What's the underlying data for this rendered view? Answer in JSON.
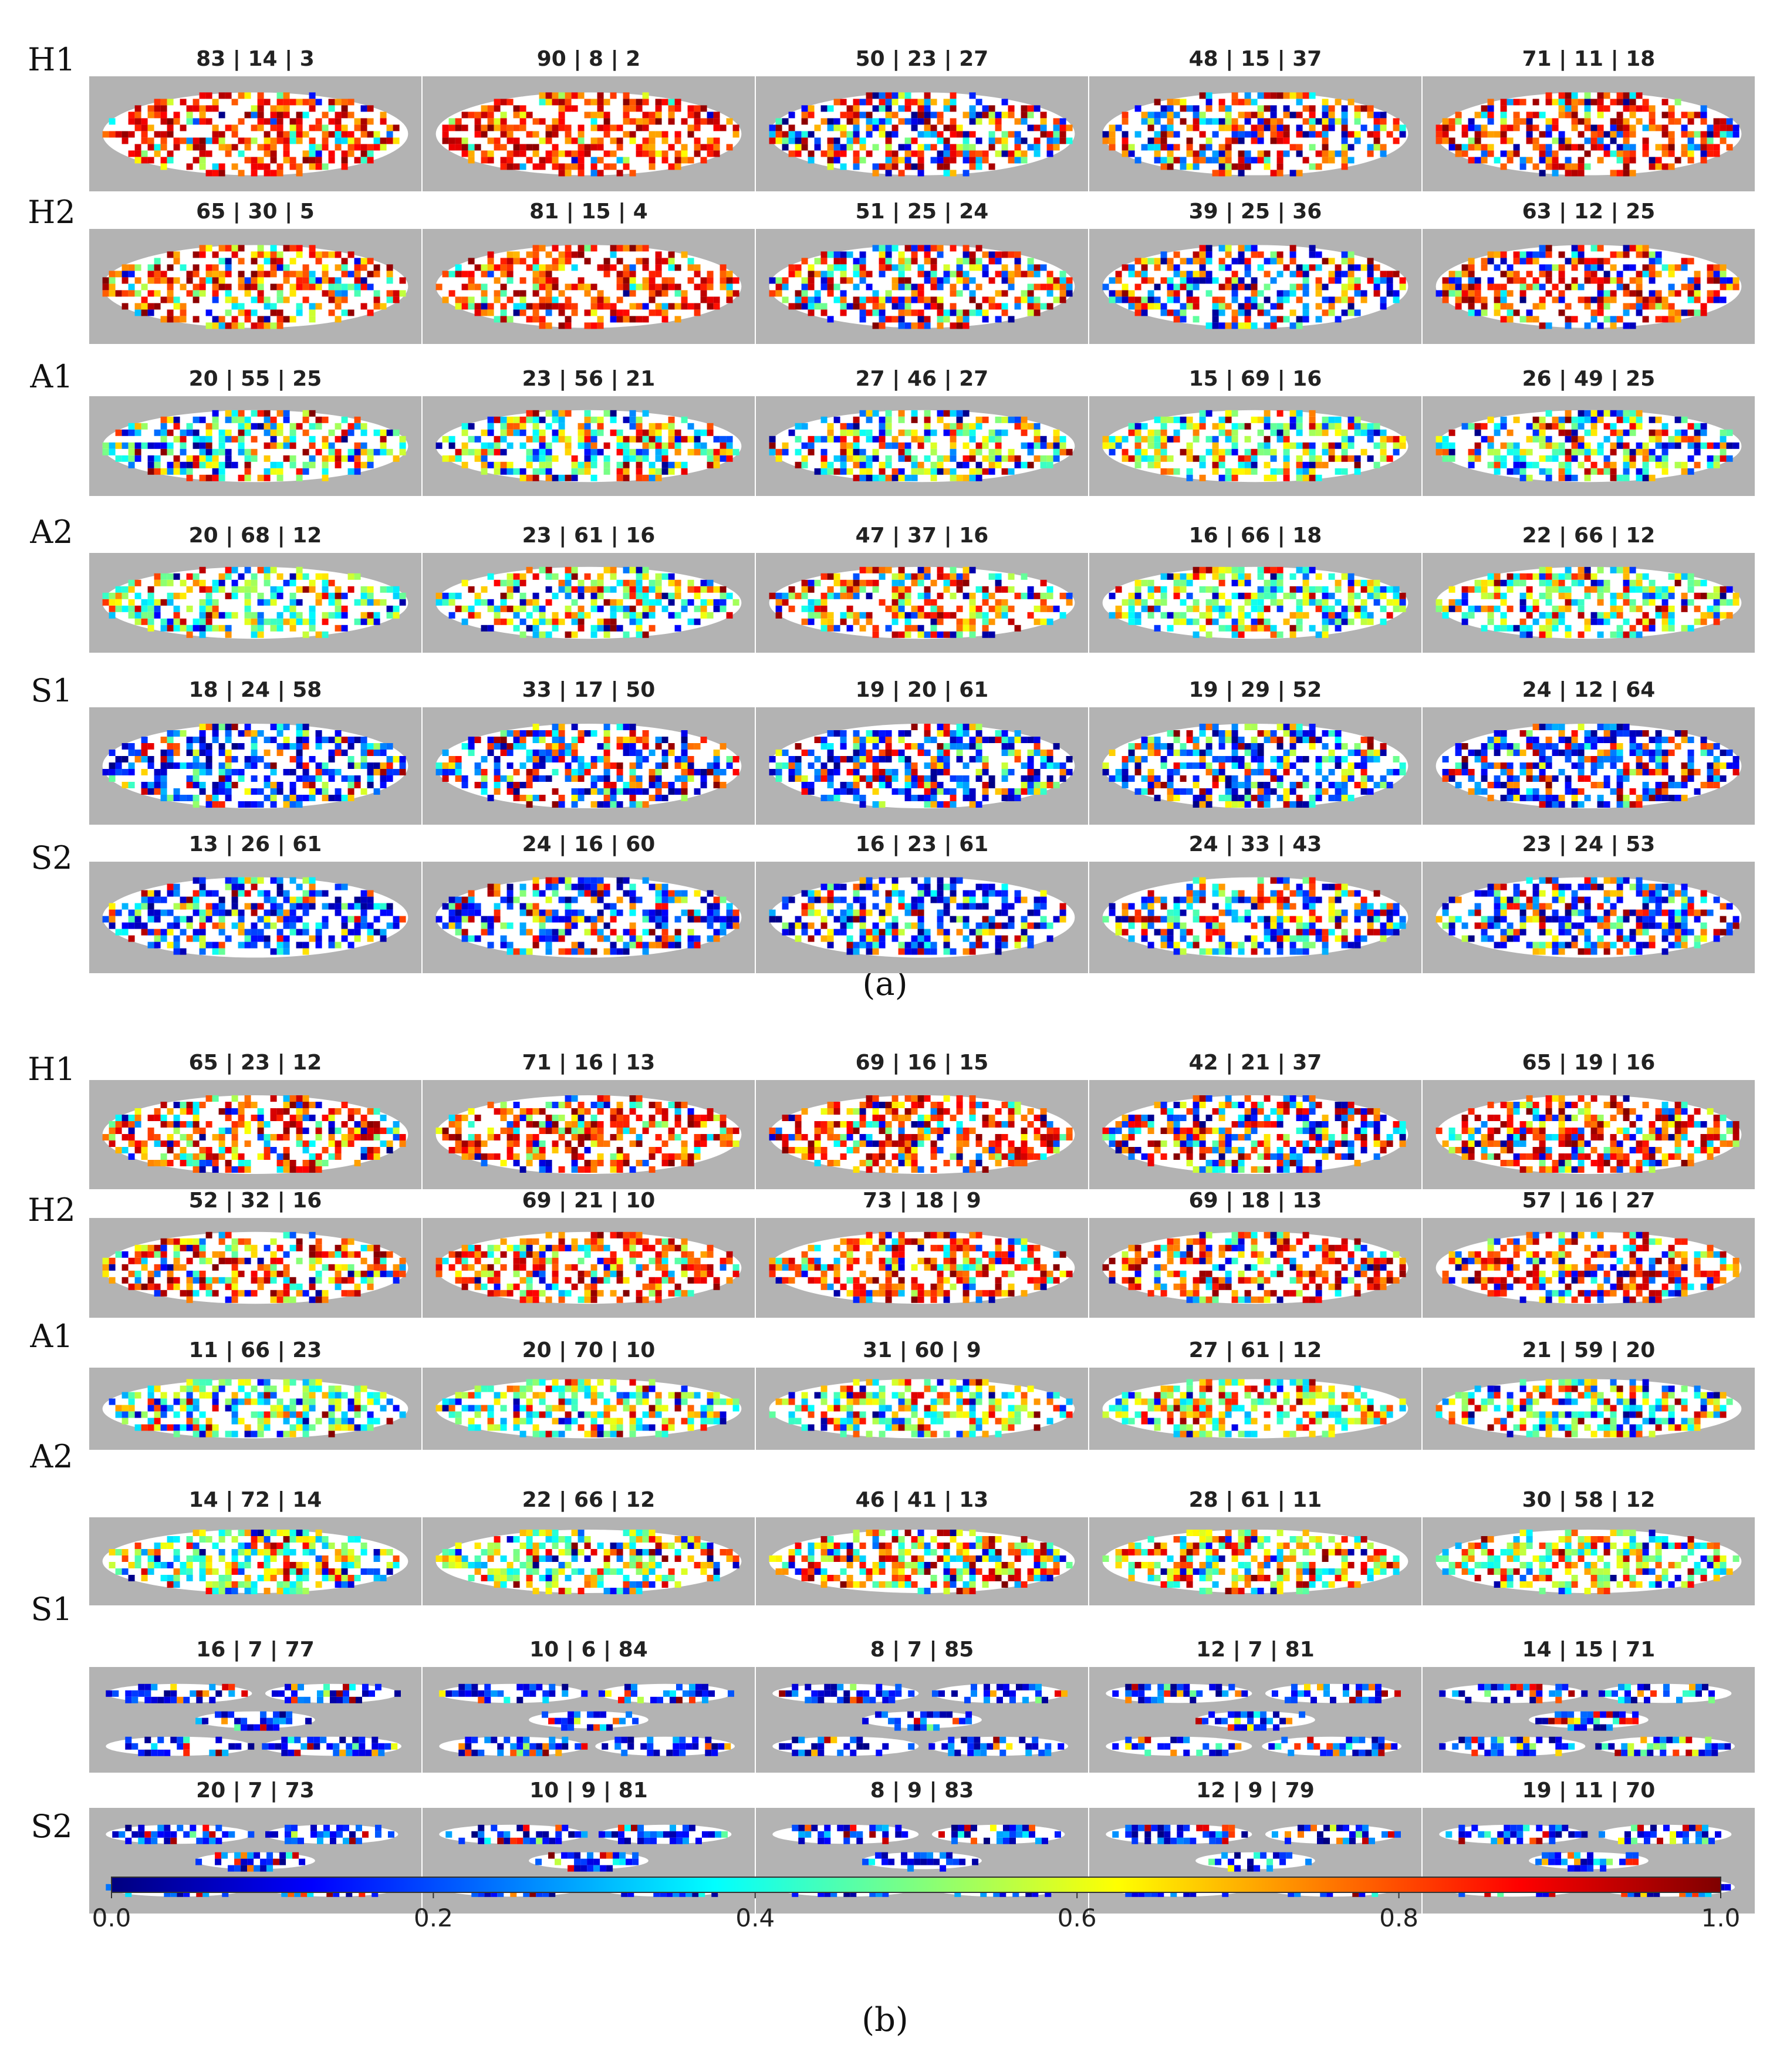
{
  "panels": [
    {
      "label": "(a)",
      "rows": [
        {
          "name": "H1",
          "cells": [
            "83 | 14 | 3",
            "90 | 8 | 2",
            "50 | 23 | 27",
            "48 | 15 | 37",
            "71 | 11 | 18"
          ]
        },
        {
          "name": "H2",
          "cells": [
            "65 | 30 | 5",
            "81 | 15 | 4",
            "51 | 25 | 24",
            "39 | 25 | 36",
            "63 | 12 | 25"
          ]
        },
        {
          "name": "A1",
          "cells": [
            "20 | 55 | 25",
            "23 | 56 | 21",
            "27 | 46 | 27",
            "15 | 69 | 16",
            "26 | 49 | 25"
          ]
        },
        {
          "name": "A2",
          "cells": [
            "20 | 68 | 12",
            "23 | 61 | 16",
            "47 | 37 | 16",
            "16 | 66 | 18",
            "22 | 66 | 12"
          ]
        },
        {
          "name": "S1",
          "cells": [
            "18 | 24 | 58",
            "33 | 17 | 50",
            "19 | 20 | 61",
            "19 | 29 | 52",
            "24 | 12 | 64"
          ]
        },
        {
          "name": "S2",
          "cells": [
            "13 | 26 | 61",
            "24 | 16 | 60",
            "16 | 23 | 61",
            "24 | 33 | 43",
            "23 | 24 | 53"
          ]
        }
      ]
    },
    {
      "label": "(b)",
      "rows": [
        {
          "name": "H1",
          "cells": [
            "65 | 23 | 12",
            "71 | 16 | 13",
            "69 | 16 | 15",
            "42 | 21 | 37",
            "65 | 19 | 16"
          ]
        },
        {
          "name": "H2",
          "cells": [
            "52 | 32 | 16",
            "69 | 21 | 10",
            "73 | 18 | 9",
            "69 | 18 | 13",
            "57 | 16 | 27"
          ]
        },
        {
          "name": "A1",
          "cells": [
            "11 | 66 | 23",
            "20 | 70 | 10",
            "31 | 60 | 9",
            "27 | 61 | 12",
            "21 | 59 | 20"
          ]
        },
        {
          "name": "A2",
          "cells": [
            "14 | 72 | 14",
            "22 | 66 | 12",
            "46 | 41 | 13",
            "28 | 61 | 11",
            "30 | 58 | 12"
          ]
        },
        {
          "name": "S1",
          "cells": [
            "16 | 7 | 77",
            "10 | 6 | 84",
            "8 | 7 | 85",
            "12 | 7 | 81",
            "14 | 15 | 71"
          ]
        },
        {
          "name": "S2",
          "cells": [
            "20 | 7 | 73",
            "10 | 9 | 81",
            "8 | 9 | 83",
            "12 | 9 | 79",
            "19 | 11 | 70"
          ]
        }
      ]
    }
  ],
  "colorbar": {
    "min": 0.0,
    "max": 1.0,
    "ticks": [
      "0.0",
      "0.2",
      "0.4",
      "0.6",
      "0.8",
      "1.0"
    ],
    "colormap": "jet",
    "stops": [
      "#00007f",
      "#0000ff",
      "#007fff",
      "#00ffff",
      "#7fff7f",
      "#ffff00",
      "#ff7f00",
      "#ff0000",
      "#7f0000"
    ]
  },
  "colors": {
    "background_tile": "#b3b3b3",
    "mask": "#ffffff"
  }
}
